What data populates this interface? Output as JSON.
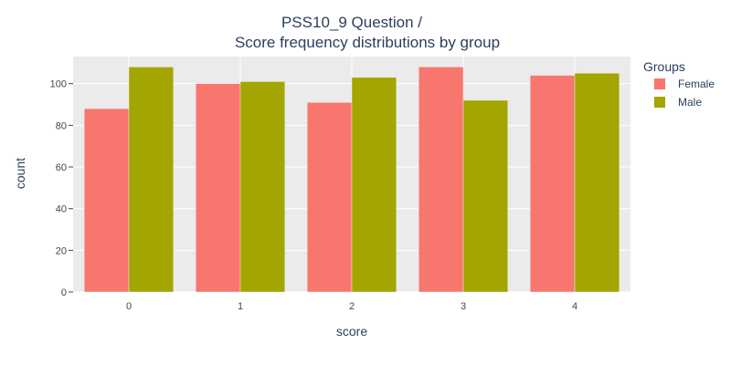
{
  "chart_data": {
    "type": "bar",
    "title": "PSS10_9 Question /",
    "subtitle": "Score frequency distributions by group",
    "xlabel": "score",
    "ylabel": "count",
    "categories": [
      "0",
      "1",
      "2",
      "3",
      "4"
    ],
    "y_ticks": [
      0,
      20,
      40,
      60,
      80,
      100
    ],
    "ylim": [
      0,
      113
    ],
    "grid": true,
    "legend": {
      "title": "Groups",
      "placement": "top-right"
    },
    "series": [
      {
        "name": "Female",
        "color": "#F8766D",
        "values": [
          88,
          100,
          91,
          108,
          104
        ]
      },
      {
        "name": "Male",
        "color": "#A3A500",
        "values": [
          108,
          101,
          103,
          92,
          105
        ]
      }
    ],
    "plot_background": "#EBEBEB",
    "grid_color": "#FFFFFF"
  }
}
